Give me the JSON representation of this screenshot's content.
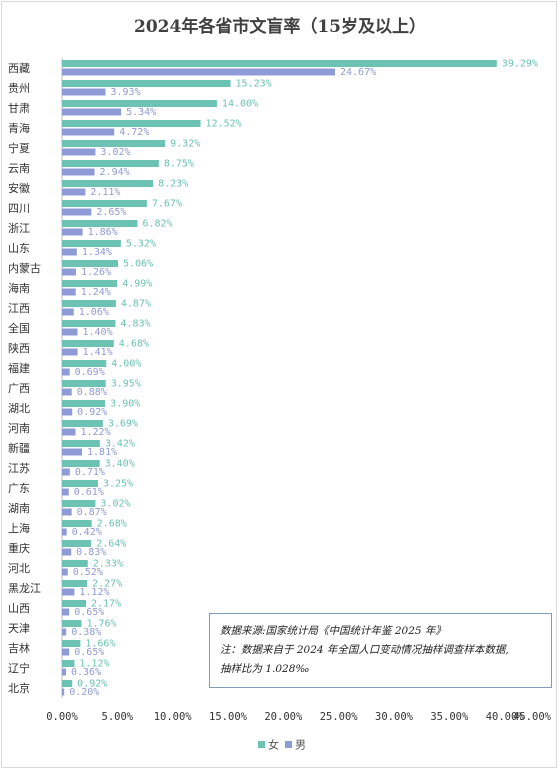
{
  "chart_data": {
    "type": "bar",
    "orientation": "horizontal",
    "title": "2024年各省市文盲率（15岁及以上）",
    "categories": [
      "西藏",
      "贵州",
      "甘肃",
      "青海",
      "宁夏",
      "云南",
      "安徽",
      "四川",
      "浙江",
      "山东",
      "内蒙古",
      "海南",
      "江西",
      "全国",
      "陕西",
      "福建",
      "广西",
      "湖北",
      "河南",
      "新疆",
      "江苏",
      "广东",
      "湖南",
      "上海",
      "重庆",
      "河北",
      "黑龙江",
      "山西",
      "天津",
      "吉林",
      "辽宁",
      "北京"
    ],
    "series": [
      {
        "name": "女",
        "color": "#6cc2b3",
        "values": [
          39.29,
          15.23,
          14.0,
          12.52,
          9.32,
          8.75,
          8.23,
          7.67,
          6.82,
          5.32,
          5.06,
          4.99,
          4.87,
          4.83,
          4.68,
          4.0,
          3.95,
          3.9,
          3.69,
          3.42,
          3.4,
          3.25,
          3.02,
          2.68,
          2.64,
          2.33,
          2.27,
          2.17,
          1.76,
          1.66,
          1.12,
          0.92
        ],
        "labels": [
          "39.29%",
          "15.23%",
          "14.00%",
          "12.52%",
          "9.32%",
          "8.75%",
          "8.23%",
          "7.67%",
          "6.82%",
          "5.32%",
          "5.06%",
          "4.99%",
          "4.87%",
          "4.83%",
          "4.68%",
          "4.00%",
          "3.95%",
          "3.90%",
          "3.69%",
          "3.42%",
          "3.40%",
          "3.25%",
          "3.02%",
          "2.68%",
          "2.64%",
          "2.33%",
          "2.27%",
          "2.17%",
          "1.76%",
          "1.66%",
          "1.12%",
          "0.92%"
        ]
      },
      {
        "name": "男",
        "color": "#8f9bd6",
        "values": [
          24.67,
          3.93,
          5.34,
          4.72,
          3.02,
          2.94,
          2.11,
          2.65,
          1.86,
          1.34,
          1.26,
          1.24,
          1.06,
          1.4,
          1.41,
          0.69,
          0.88,
          0.92,
          1.22,
          1.81,
          0.71,
          0.61,
          0.87,
          0.42,
          0.83,
          0.52,
          1.12,
          0.65,
          0.38,
          0.65,
          0.36,
          0.2
        ],
        "labels": [
          "24.67%",
          "3.93%",
          "5.34%",
          "4.72%",
          "3.02%",
          "2.94%",
          "2.11%",
          "2.65%",
          "1.86%",
          "1.34%",
          "1.26%",
          "1.24%",
          "1.06%",
          "1.40%",
          "1.41%",
          "0.69%",
          "0.88%",
          "0.92%",
          "1.22%",
          "1.81%",
          "0.71%",
          "0.61%",
          "0.87%",
          "0.42%",
          "0.83%",
          "0.52%",
          "1.12%",
          "0.65%",
          "0.38%",
          "0.65%",
          "0.36%",
          "0.20%"
        ]
      }
    ],
    "xlim": [
      0,
      45
    ],
    "x_ticks": [
      0,
      5,
      10,
      15,
      20,
      25,
      30,
      35,
      40,
      45
    ],
    "x_tick_labels": [
      "0.00%",
      "5.00%",
      "10.00%",
      "15.00%",
      "20.00%",
      "25.00%",
      "30.00%",
      "35.00%",
      "40.00%",
      "45.00%"
    ],
    "grid": false,
    "legend_position": "bottom",
    "legend": [
      "女",
      "男"
    ]
  },
  "note": {
    "source": "数据来源:国家统计局《中国统计年鉴 2025 年》",
    "line2": "注：数据来自于 2024 年全国人口变动情况抽样调查样本数据,",
    "line3": "抽样比为 1.028‰"
  }
}
